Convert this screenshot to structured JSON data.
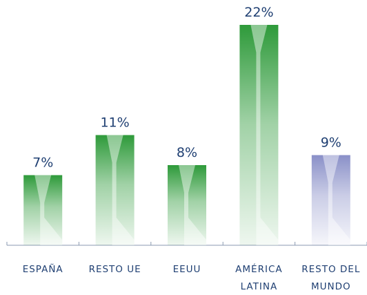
{
  "chart_data": {
    "type": "bar",
    "categories": [
      "ESPAÑA",
      "RESTO UE",
      "EEUU",
      "AMÉRICA LATINA",
      "RESTO DEL MUNDO"
    ],
    "values": [
      7,
      11,
      8,
      22,
      9
    ],
    "value_labels": [
      "7%",
      "11%",
      "8%",
      "22%",
      "9%"
    ],
    "colors": [
      "#2e9a3a",
      "#2e9a3a",
      "#2e9a3a",
      "#2e9a3a",
      "#8a90c8"
    ]
  }
}
